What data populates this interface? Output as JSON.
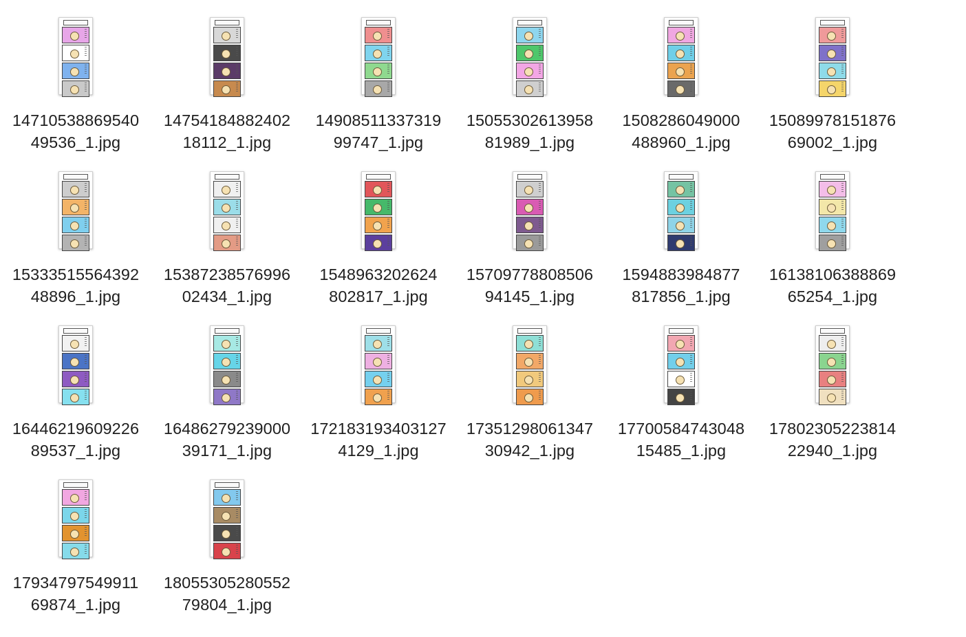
{
  "window": {
    "view": "icon-grid"
  },
  "files": [
    {
      "name_line1": "14710538869540",
      "name_line2": "49536_1.jpg",
      "panel_colors": [
        "#e7a6e8",
        "#ffffff",
        "#7fb2ee",
        "#c9c9c9"
      ]
    },
    {
      "name_line1": "14754184882402",
      "name_line2": "18112_1.jpg",
      "panel_colors": [
        "#d8d8d8",
        "#4a4a4a",
        "#5b3b68",
        "#c78a4e"
      ]
    },
    {
      "name_line1": "14908511337319",
      "name_line2": "99747_1.jpg",
      "panel_colors": [
        "#ef8f8f",
        "#7fd4ee",
        "#8fd98f",
        "#a8a8a8"
      ]
    },
    {
      "name_line1": "15055302613958",
      "name_line2": "81989_1.jpg",
      "panel_colors": [
        "#8ed6ee",
        "#4ec76b",
        "#f3a6e5",
        "#cfcfcf"
      ]
    },
    {
      "name_line1": "1508286049000",
      "name_line2": "488960_1.jpg",
      "panel_colors": [
        "#f0a7e1",
        "#6fcfe8",
        "#eba34f",
        "#6a6a6a"
      ]
    },
    {
      "name_line1": "15089978151876",
      "name_line2": "69002_1.jpg",
      "panel_colors": [
        "#ef9a9a",
        "#7f71c9",
        "#8edbe9",
        "#f5d56a"
      ]
    },
    {
      "name_line1": "15333515564392",
      "name_line2": "48896_1.jpg",
      "panel_colors": [
        "#cdcdcd",
        "#f3b468",
        "#7fcfee",
        "#b3b3b3"
      ]
    },
    {
      "name_line1": "15387238576996",
      "name_line2": "02434_1.jpg",
      "panel_colors": [
        "#f0f0f0",
        "#9bdde9",
        "#f0f0f0",
        "#e39b85"
      ]
    },
    {
      "name_line1": "1548963202624",
      "name_line2": "802817_1.jpg",
      "panel_colors": [
        "#e2565a",
        "#46b96a",
        "#f1a34d",
        "#5c3f9e"
      ]
    },
    {
      "name_line1": "15709778808506",
      "name_line2": "94145_1.jpg",
      "panel_colors": [
        "#cfcfcf",
        "#d95bb3",
        "#7e5a8f",
        "#9a9a9a"
      ]
    },
    {
      "name_line1": "1594883984877",
      "name_line2": "817856_1.jpg",
      "panel_colors": [
        "#75c3a3",
        "#6cd1e0",
        "#8fd4e8",
        "#2f3b6f"
      ]
    },
    {
      "name_line1": "16138106388869",
      "name_line2": "65254_1.jpg",
      "panel_colors": [
        "#f3bde8",
        "#f3e7a9",
        "#8fd8ec",
        "#9f9f9f"
      ]
    },
    {
      "name_line1": "16446219609226",
      "name_line2": "89537_1.jpg",
      "panel_colors": [
        "#f2f2f2",
        "#4b74c6",
        "#8e5bc2",
        "#86e0ef"
      ]
    },
    {
      "name_line1": "16486279239000",
      "name_line2": "39171_1.jpg",
      "panel_colors": [
        "#a7e9e4",
        "#66d5e8",
        "#8a8a8a",
        "#8f78c7"
      ]
    },
    {
      "name_line1": "172183193403127",
      "name_line2": "4129_1.jpg",
      "panel_colors": [
        "#9edfe8",
        "#eeb0e2",
        "#75d0ee",
        "#f0a14e"
      ]
    },
    {
      "name_line1": "17351298061347",
      "name_line2": "30942_1.jpg",
      "panel_colors": [
        "#8edfd6",
        "#f2a867",
        "#f1c97c",
        "#ef9b4d"
      ]
    },
    {
      "name_line1": "17700584743048",
      "name_line2": "15485_1.jpg",
      "panel_colors": [
        "#f2a7b2",
        "#72cfea",
        "#ffffff",
        "#444444"
      ]
    },
    {
      "name_line1": "17802305223814",
      "name_line2": "22940_1.jpg",
      "panel_colors": [
        "#eeeeee",
        "#8ad48f",
        "#e88080",
        "#f0e0c0"
      ]
    },
    {
      "name_line1": "17934797549911",
      "name_line2": "69874_1.jpg",
      "panel_colors": [
        "#f1a7e1",
        "#7bd6ea",
        "#e2932f",
        "#86dbea"
      ]
    },
    {
      "name_line1": "18055305280552",
      "name_line2": "79804_1.jpg",
      "panel_colors": [
        "#83c9ee",
        "#a88b64",
        "#4a4a4a",
        "#d9434b"
      ]
    }
  ]
}
